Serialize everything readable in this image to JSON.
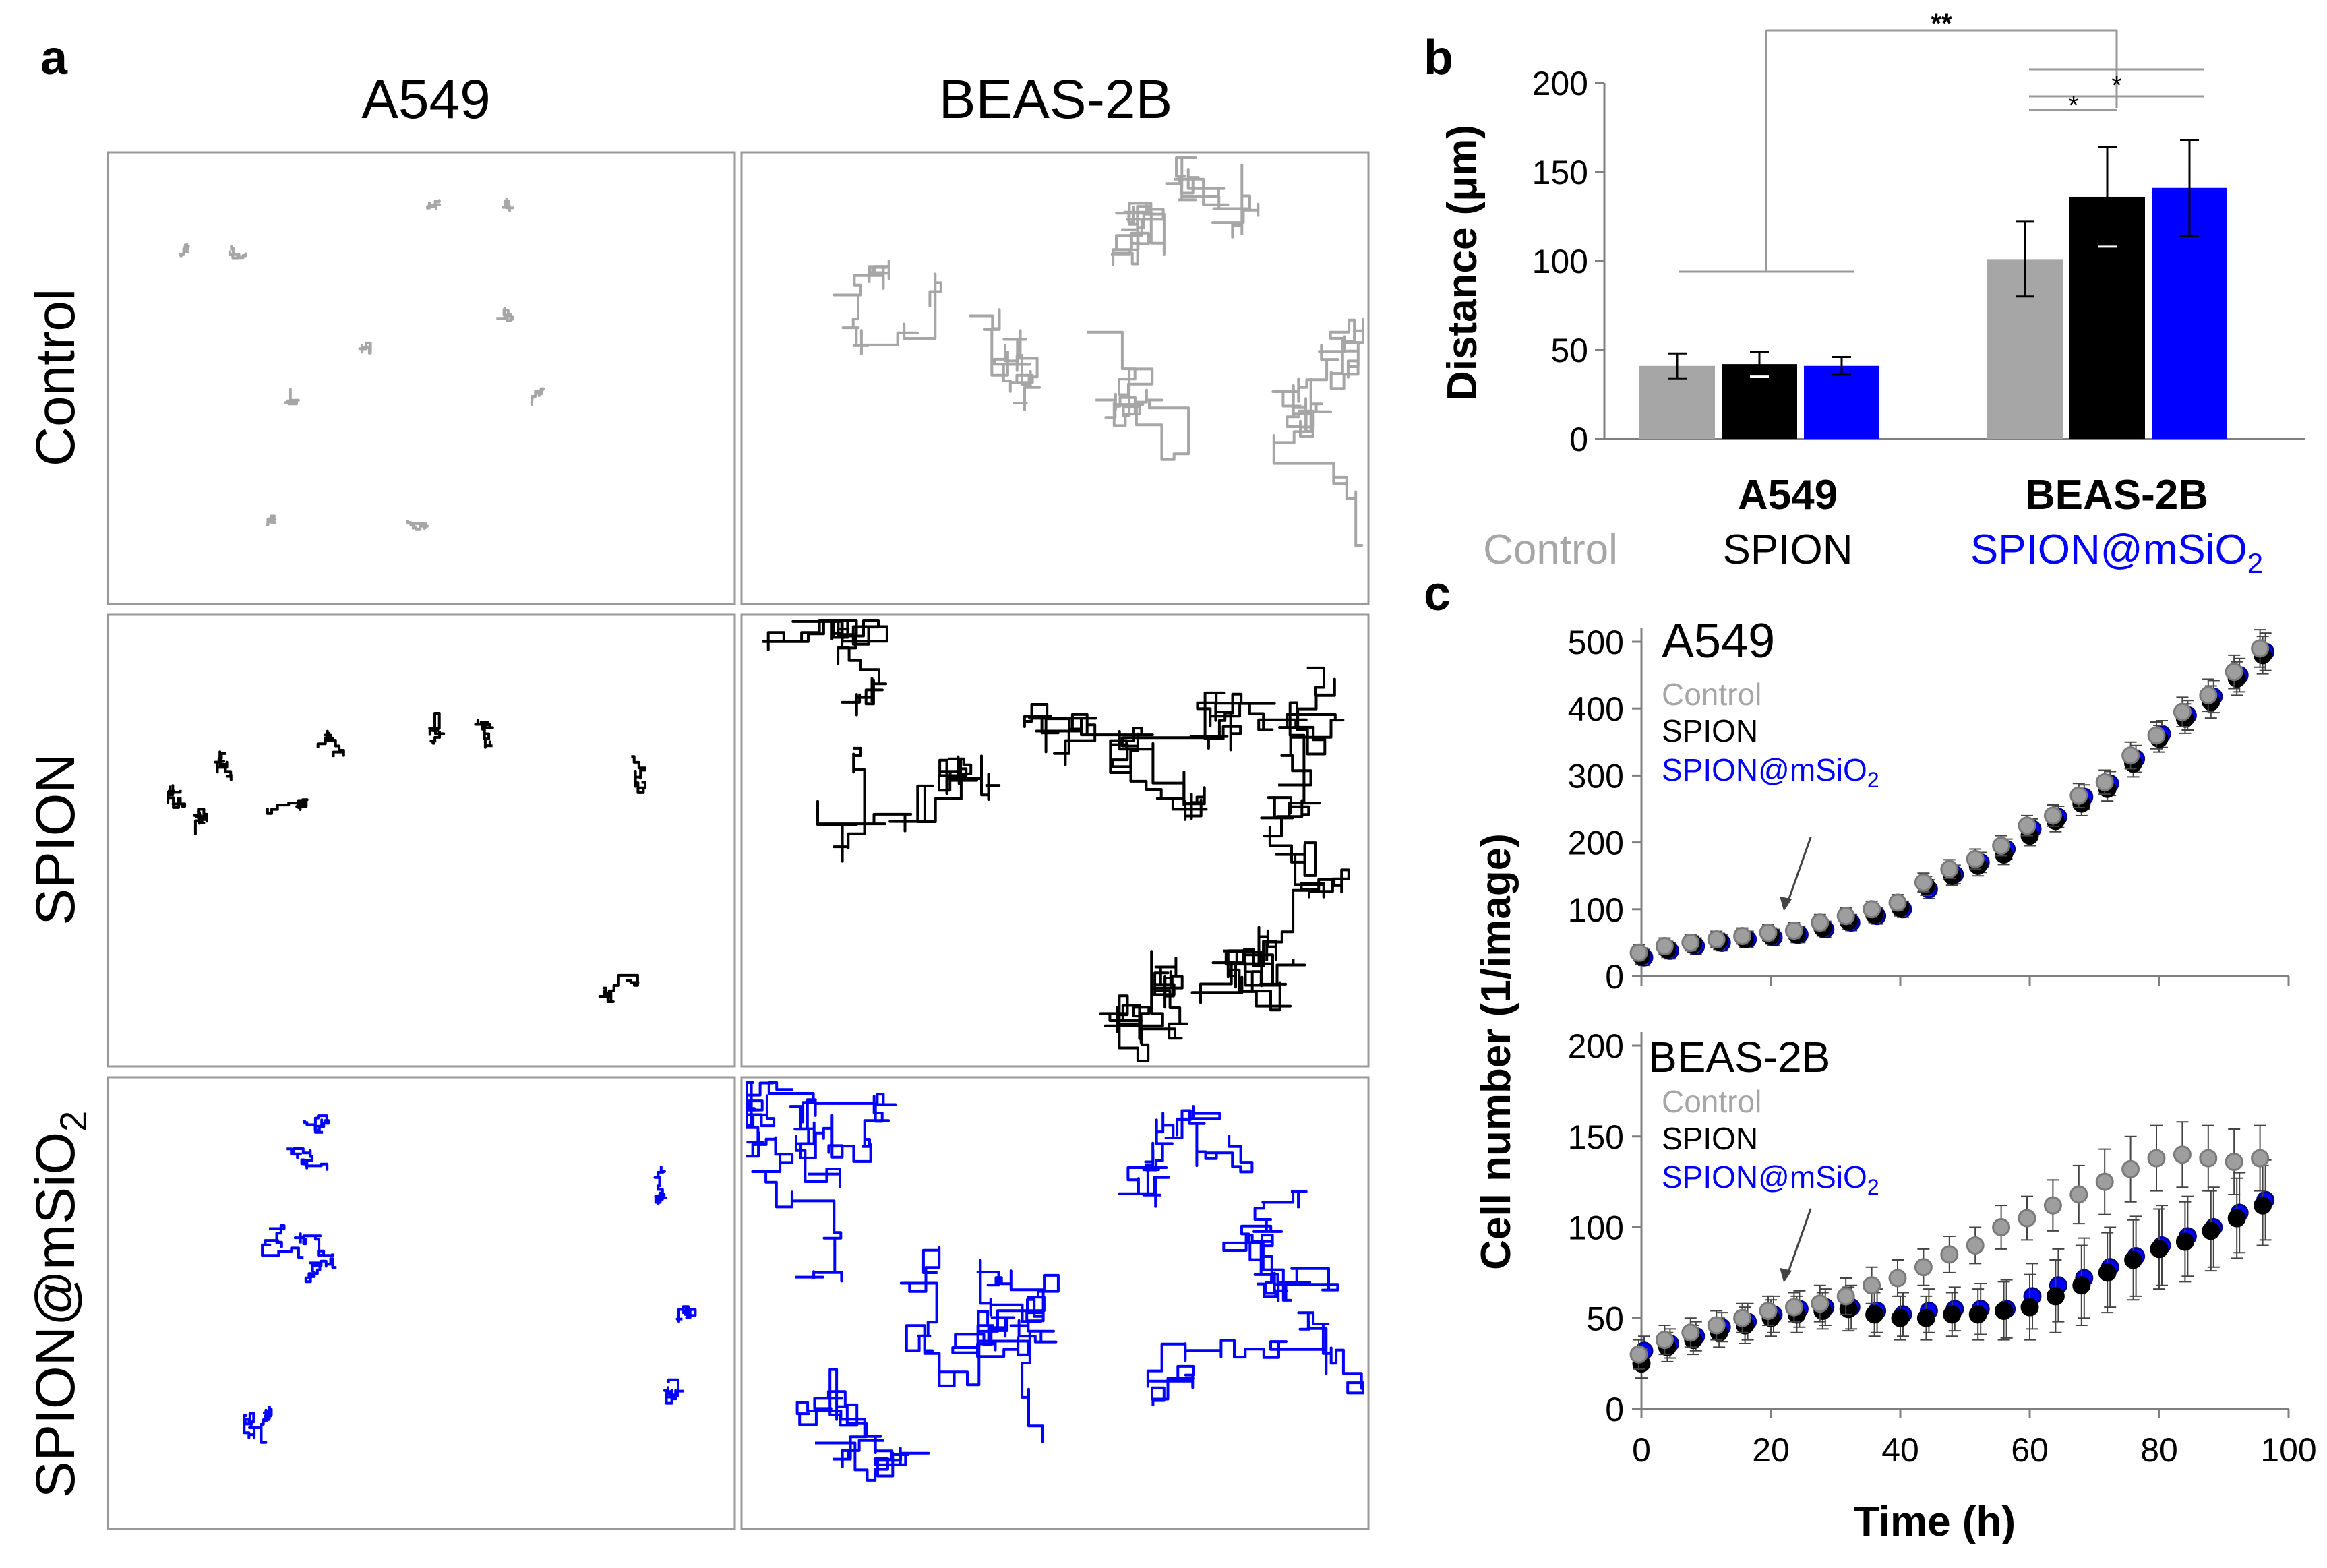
{
  "panel_letters": {
    "a": "a",
    "b": "b",
    "c": "c"
  },
  "panel_a": {
    "col_headers": [
      "A549",
      "BEAS-2B"
    ],
    "row_headers": [
      "Control",
      "SPION",
      "SPION@mSiO"
    ],
    "row_header_subscript": "2"
  },
  "colors": {
    "control": "#a6a6a6",
    "spion": "#000000",
    "mspion": "#0000ff",
    "axis": "#7f7f7f"
  },
  "chart_data": [
    {
      "id": "b",
      "type": "bar",
      "ylabel": "Distance (μm)",
      "ylim": [
        0,
        200
      ],
      "yticks": [
        0,
        50,
        100,
        150,
        200
      ],
      "categories": [
        "A549",
        "BEAS-2B"
      ],
      "series": [
        {
          "name": "Control",
          "values": [
            41,
            101
          ],
          "errors": [
            7,
            21
          ]
        },
        {
          "name": "SPION",
          "values": [
            42,
            136
          ],
          "errors": [
            7,
            28
          ]
        },
        {
          "name": "SPION@mSiO2",
          "values": [
            41,
            141
          ],
          "errors": [
            5,
            27
          ]
        }
      ],
      "legend": {
        "control": "Control",
        "spion": "SPION",
        "mspion_main": "SPION@mSiO",
        "mspion_sub": "2"
      },
      "significance": [
        "**",
        "*",
        "*"
      ]
    },
    {
      "id": "c-top",
      "type": "scatter",
      "title": "A549",
      "ylim": [
        0,
        500
      ],
      "yticks": [
        0,
        100,
        200,
        300,
        400,
        500
      ],
      "xlim": [
        0,
        100
      ],
      "arrow_x": 22,
      "series": [
        {
          "name": "Control",
          "x": [
            0,
            4,
            8,
            12,
            16,
            20,
            24,
            28,
            32,
            36,
            40,
            44,
            48,
            52,
            56,
            60,
            64,
            68,
            72,
            76,
            80,
            84,
            88,
            92,
            96
          ],
          "y": [
            35,
            45,
            50,
            55,
            60,
            65,
            68,
            80,
            90,
            100,
            110,
            140,
            160,
            175,
            195,
            225,
            240,
            270,
            290,
            330,
            360,
            395,
            420,
            455,
            490
          ],
          "err": [
            12,
            12,
            12,
            12,
            12,
            12,
            12,
            12,
            12,
            12,
            12,
            14,
            14,
            15,
            15,
            15,
            16,
            18,
            18,
            20,
            20,
            22,
            24,
            25,
            28
          ]
        },
        {
          "name": "SPION",
          "x": [
            0,
            4,
            8,
            12,
            16,
            20,
            24,
            28,
            32,
            36,
            40,
            44,
            48,
            52,
            56,
            60,
            64,
            68,
            72,
            76,
            80,
            84,
            88,
            92,
            96
          ],
          "y": [
            30,
            40,
            48,
            52,
            55,
            60,
            62,
            72,
            82,
            92,
            102,
            135,
            150,
            165,
            182,
            210,
            232,
            258,
            280,
            318,
            355,
            385,
            410,
            445,
            480
          ],
          "err": [
            12,
            12,
            12,
            12,
            12,
            12,
            12,
            12,
            12,
            12,
            12,
            14,
            14,
            15,
            15,
            15,
            16,
            18,
            18,
            20,
            20,
            22,
            24,
            25,
            28
          ]
        },
        {
          "name": "SPION@mSiO2",
          "x": [
            0,
            4,
            8,
            12,
            16,
            20,
            24,
            28,
            32,
            36,
            40,
            44,
            48,
            52,
            56,
            60,
            64,
            68,
            72,
            76,
            80,
            84,
            88,
            92,
            96
          ],
          "y": [
            28,
            38,
            45,
            50,
            55,
            58,
            62,
            70,
            80,
            90,
            100,
            130,
            152,
            170,
            190,
            220,
            238,
            268,
            288,
            325,
            362,
            390,
            418,
            450,
            485
          ],
          "err": [
            12,
            12,
            12,
            12,
            12,
            12,
            12,
            12,
            12,
            12,
            12,
            14,
            14,
            15,
            15,
            15,
            16,
            18,
            18,
            20,
            20,
            22,
            24,
            25,
            28
          ]
        }
      ],
      "legend": {
        "control": "Control",
        "spion": "SPION",
        "mspion_main": "SPION@mSiO",
        "mspion_sub": "2"
      }
    },
    {
      "id": "c-bottom",
      "type": "scatter",
      "title": "BEAS-2B",
      "ylim": [
        0,
        200
      ],
      "yticks": [
        0,
        50,
        100,
        150,
        200
      ],
      "xlim": [
        0,
        100
      ],
      "xticks": [
        0,
        20,
        40,
        60,
        80,
        100
      ],
      "xlabel": "Time (h)",
      "ylabel": "Cell number (1/image)",
      "arrow_x": 22,
      "series": [
        {
          "name": "Control",
          "x": [
            0,
            4,
            8,
            12,
            16,
            20,
            24,
            28,
            32,
            36,
            40,
            44,
            48,
            52,
            56,
            60,
            64,
            68,
            72,
            76,
            80,
            84,
            88,
            92,
            96
          ],
          "y": [
            30,
            38,
            42,
            46,
            50,
            54,
            56,
            58,
            62,
            68,
            72,
            78,
            85,
            90,
            100,
            105,
            112,
            118,
            125,
            132,
            138,
            140,
            138,
            136,
            138
          ],
          "err": [
            8,
            8,
            8,
            8,
            8,
            8,
            8,
            10,
            10,
            10,
            10,
            10,
            10,
            10,
            12,
            12,
            14,
            16,
            18,
            18,
            18,
            18,
            18,
            18,
            18
          ]
        },
        {
          "name": "SPION",
          "x": [
            0,
            4,
            8,
            12,
            16,
            20,
            24,
            28,
            32,
            36,
            40,
            44,
            48,
            52,
            56,
            60,
            64,
            68,
            72,
            76,
            80,
            84,
            88,
            92,
            96
          ],
          "y": [
            25,
            34,
            38,
            42,
            46,
            50,
            52,
            54,
            55,
            52,
            50,
            50,
            52,
            52,
            54,
            56,
            62,
            68,
            75,
            82,
            88,
            92,
            98,
            105,
            112
          ],
          "err": [
            8,
            8,
            8,
            8,
            10,
            10,
            10,
            10,
            12,
            12,
            12,
            12,
            12,
            14,
            16,
            18,
            20,
            22,
            22,
            22,
            22,
            22,
            22,
            22,
            22
          ]
        },
        {
          "name": "SPION@mSiO2",
          "x": [
            0,
            4,
            8,
            12,
            16,
            20,
            24,
            28,
            32,
            36,
            40,
            44,
            48,
            52,
            56,
            60,
            64,
            68,
            72,
            76,
            80,
            84,
            88,
            92,
            96
          ],
          "y": [
            32,
            36,
            40,
            45,
            48,
            52,
            55,
            56,
            56,
            54,
            52,
            54,
            55,
            55,
            55,
            62,
            68,
            72,
            78,
            84,
            90,
            95,
            100,
            108,
            115
          ],
          "err": [
            8,
            8,
            8,
            8,
            10,
            10,
            10,
            10,
            12,
            12,
            12,
            12,
            12,
            14,
            16,
            18,
            20,
            22,
            22,
            22,
            22,
            22,
            22,
            22,
            22
          ]
        }
      ],
      "legend": {
        "control": "Control",
        "spion": "SPION",
        "mspion_main": "SPION@mSiO",
        "mspion_sub": "2"
      }
    }
  ]
}
